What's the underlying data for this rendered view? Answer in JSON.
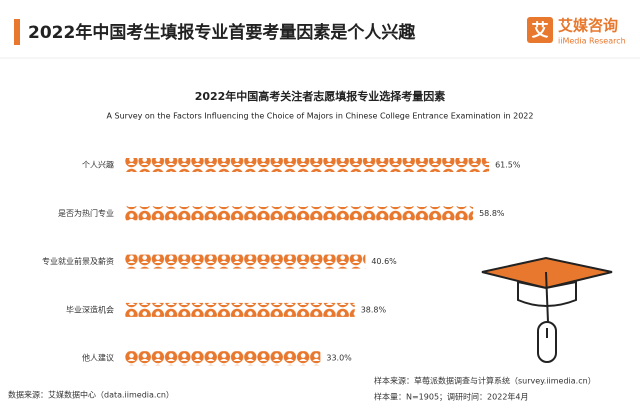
{
  "header": {
    "title": "2022年中国考生填报专业首要考量因素是个人兴趣",
    "logo_icon": "艾",
    "logo": "艾媒咨询",
    "logo_sub": "iiMedia Research"
  },
  "chart_data": {
    "type": "bar",
    "orientation": "horizontal",
    "title": "2022年中国高考关注者志愿填报专业选择考量因素",
    "subtitle": "A Survey on the Factors Influencing the Choice of Majors in Chinese College Entrance Examination in 2022",
    "categories": [
      "个人兴趣",
      "是否为热门专业",
      "专业就业前景及薪资",
      "毕业深造机会",
      "他人建议"
    ],
    "values": [
      61.5,
      58.8,
      40.6,
      38.8,
      33.0
    ],
    "value_labels": [
      "61.5%",
      "58.8%",
      "40.6%",
      "38.8%",
      "33.0%"
    ],
    "color": "#e8782e"
  },
  "footer": {
    "source": "数据来源：艾媒数据中心（data.iimedia.cn）",
    "sample_source": "样本来源：草莓派数据调查与计算系统（survey.iimedia.cn）",
    "sample_size": "样本量：N=1905；调研时间：2022年4月"
  }
}
